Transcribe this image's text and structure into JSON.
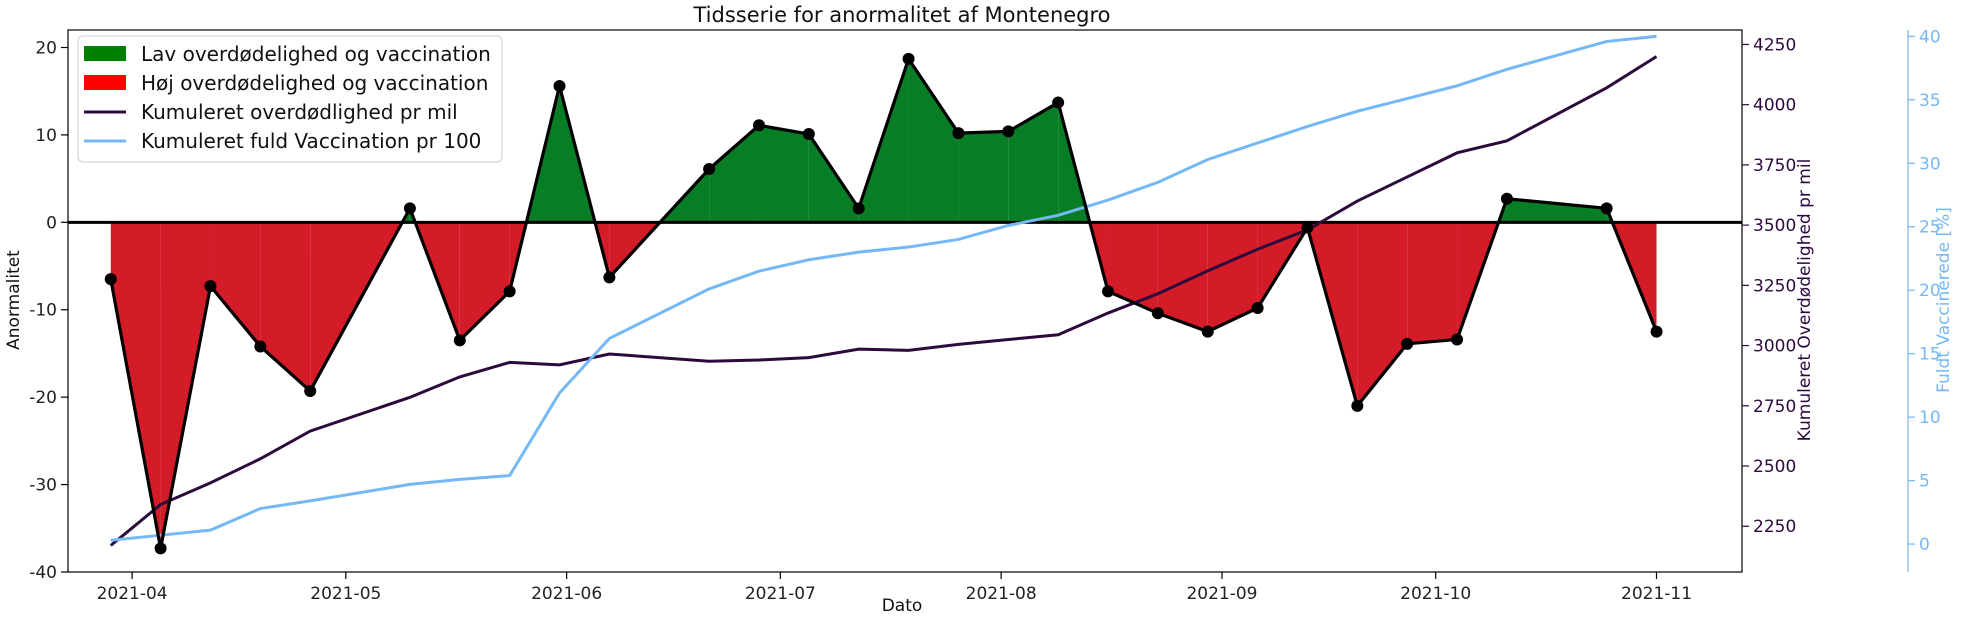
{
  "chart_data": {
    "type": "line",
    "title": "Tidsserie for anormalitet af Montenegro",
    "xlabel": "Dato",
    "ylabel": "Anormalitet",
    "ylabel_right": "Kumuleret Overdødelighed pr mil",
    "ylabel_right2": "Fuldt Vaccinerede [%]",
    "x_ticks": [
      "2021-04",
      "2021-05",
      "2021-06",
      "2021-07",
      "2021-08",
      "2021-09",
      "2021-10",
      "2021-11"
    ],
    "x_tick_dates": [
      "2021-04-01",
      "2021-05-01",
      "2021-06-01",
      "2021-07-01",
      "2021-08-01",
      "2021-09-01",
      "2021-10-01",
      "2021-11-01"
    ],
    "xlim": [
      "2021-03-23",
      "2021-11-13"
    ],
    "ylim": [
      -40,
      22
    ],
    "yticks": [
      -40,
      -30,
      -20,
      -10,
      0,
      10,
      20
    ],
    "ylim_right": [
      2060,
      4310
    ],
    "yticks_right": [
      2250,
      2500,
      2750,
      3000,
      3250,
      3500,
      3750,
      4000,
      4250
    ],
    "ylim_right2": [
      -2.2,
      40.5
    ],
    "yticks_right2": [
      0,
      5,
      10,
      15,
      20,
      25,
      30,
      35,
      40
    ],
    "grid": false,
    "legend_position": "top-left",
    "colors": {
      "positive_fill": "#077d26",
      "negative_fill": "#d41b28",
      "anomaly_line": "#000000",
      "mortality_line": "#2d0a3d",
      "vaccination_line": "#74b8f5",
      "right_axis": "#2d0a3d",
      "right_axis2": "#74b8f5",
      "legend_patch_positive": "#008000",
      "legend_patch_negative": "#ff0000"
    },
    "legend": [
      {
        "label": "Lav overdødelighed og vaccination",
        "kind": "patch",
        "color_key": "legend_patch_positive"
      },
      {
        "label": "Høj overdødelighed og vaccination",
        "kind": "patch",
        "color_key": "legend_patch_negative"
      },
      {
        "label": "Kumuleret overdødlighed pr mil",
        "kind": "line",
        "color_key": "mortality_line"
      },
      {
        "label": "Kumuleret fuld Vaccination pr 100",
        "kind": "line",
        "color_key": "vaccination_line"
      }
    ],
    "series": [
      {
        "name": "Anormalitet",
        "axis": "left",
        "x": [
          "2021-03-29",
          "2021-04-05",
          "2021-04-12",
          "2021-04-19",
          "2021-04-26",
          "2021-05-10",
          "2021-05-17",
          "2021-05-24",
          "2021-05-31",
          "2021-06-07",
          "2021-06-21",
          "2021-06-28",
          "2021-07-05",
          "2021-07-12",
          "2021-07-19",
          "2021-07-26",
          "2021-08-02",
          "2021-08-09",
          "2021-08-16",
          "2021-08-23",
          "2021-08-30",
          "2021-09-06",
          "2021-09-13",
          "2021-09-20",
          "2021-09-27",
          "2021-10-04",
          "2021-10-11",
          "2021-10-25",
          "2021-11-01"
        ],
        "values": [
          -6.5,
          -37.3,
          -7.3,
          -14.2,
          -19.3,
          1.6,
          -13.5,
          -7.9,
          15.6,
          -6.3,
          6.1,
          11.1,
          10.1,
          1.6,
          18.7,
          10.2,
          10.4,
          13.7,
          -7.9,
          -10.4,
          -12.5,
          -9.8,
          -0.6,
          -21.0,
          -13.9,
          -13.4,
          2.7,
          1.6,
          -12.5
        ]
      },
      {
        "name": "Kumuleret overdødlighed pr mil",
        "axis": "right",
        "x": [
          "2021-03-29",
          "2021-04-05",
          "2021-04-12",
          "2021-04-19",
          "2021-04-26",
          "2021-05-10",
          "2021-05-17",
          "2021-05-24",
          "2021-05-31",
          "2021-06-07",
          "2021-06-21",
          "2021-06-28",
          "2021-07-05",
          "2021-07-12",
          "2021-07-19",
          "2021-07-26",
          "2021-08-02",
          "2021-08-09",
          "2021-08-16",
          "2021-08-23",
          "2021-08-30",
          "2021-09-06",
          "2021-09-13",
          "2021-09-20",
          "2021-09-27",
          "2021-10-04",
          "2021-10-11",
          "2021-10-25",
          "2021-11-01"
        ],
        "values": [
          2170,
          2340,
          2430,
          2530,
          2645,
          2785,
          2870,
          2930,
          2920,
          2965,
          2935,
          2940,
          2950,
          2985,
          2980,
          3005,
          3025,
          3045,
          3135,
          3215,
          3310,
          3400,
          3480,
          3600,
          3700,
          3800,
          3850,
          4070,
          4200
        ]
      },
      {
        "name": "Kumuleret fuld Vaccination pr 100",
        "axis": "right2",
        "x": [
          "2021-03-29",
          "2021-04-05",
          "2021-04-12",
          "2021-04-19",
          "2021-04-26",
          "2021-05-10",
          "2021-05-17",
          "2021-05-24",
          "2021-05-31",
          "2021-06-07",
          "2021-06-21",
          "2021-06-28",
          "2021-07-05",
          "2021-07-12",
          "2021-07-19",
          "2021-07-26",
          "2021-08-02",
          "2021-08-09",
          "2021-08-16",
          "2021-08-23",
          "2021-08-30",
          "2021-09-06",
          "2021-09-13",
          "2021-09-20",
          "2021-09-27",
          "2021-10-04",
          "2021-10-11",
          "2021-10-25",
          "2021-11-01"
        ],
        "values": [
          0.3,
          0.7,
          1.1,
          2.8,
          3.4,
          4.7,
          5.1,
          5.4,
          11.9,
          16.2,
          20.1,
          21.5,
          22.4,
          23.0,
          23.4,
          24.0,
          25.1,
          25.9,
          27.1,
          28.5,
          30.3,
          31.6,
          32.9,
          34.1,
          35.1,
          36.1,
          37.4,
          39.6,
          40.0
        ]
      }
    ]
  }
}
